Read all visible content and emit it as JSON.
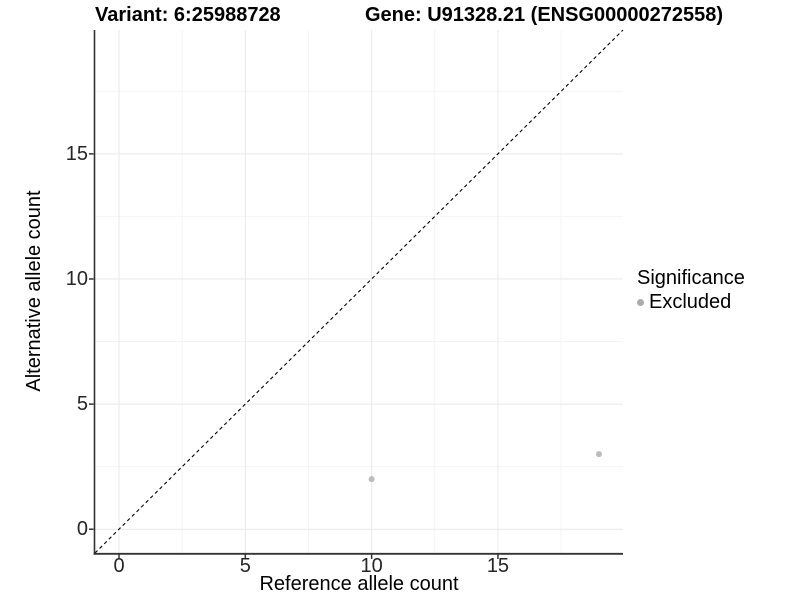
{
  "chart_data": {
    "type": "scatter",
    "title_left": "Variant: 6:25988728",
    "title_right": "Gene: U91328.21 (ENSG00000272558)",
    "xlabel": "Reference allele count",
    "ylabel": "Alternative allele count",
    "xlim": [
      -0.95,
      19.95
    ],
    "ylim": [
      -0.95,
      19.95
    ],
    "x_ticks": [
      0,
      5,
      10,
      15
    ],
    "y_ticks": [
      0,
      5,
      10,
      15
    ],
    "x_minor_ticks": [
      2.5,
      7.5,
      12.5,
      17.5
    ],
    "y_minor_ticks": [
      2.5,
      7.5,
      12.5,
      17.5
    ],
    "grid": "major+minor on white panel",
    "points": [
      {
        "x": 10,
        "y": 2,
        "series": "Excluded"
      },
      {
        "x": 19,
        "y": 3,
        "series": "Excluded"
      }
    ],
    "reference_line": {
      "type": "identity y=x",
      "style": "dashed",
      "color": "#000000"
    },
    "legend": {
      "position": "right",
      "title": "Significance",
      "items": [
        {
          "label": "Excluded",
          "color": "#ababab"
        }
      ]
    },
    "point_color": "#bcbcbc",
    "point_radius_px": 3,
    "colors": {
      "grid_major": "#e9e9e9",
      "grid_minor": "#f4f4f4",
      "axis_line": "#333333",
      "tick_text": "#262626",
      "background": "#ffffff"
    }
  }
}
